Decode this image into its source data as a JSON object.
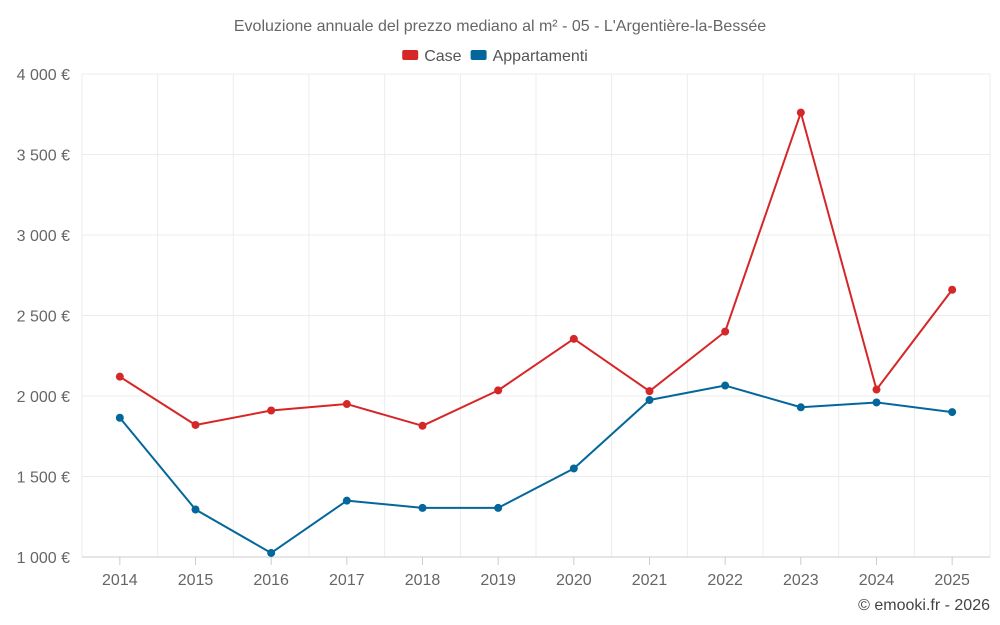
{
  "credit": "© emooki.fr - 2026",
  "chart_data": {
    "type": "line",
    "title": "Evoluzione annuale del prezzo mediano al m² - 05 - L'Argentière-la-Bessée",
    "categories": [
      "2014",
      "2015",
      "2016",
      "2017",
      "2018",
      "2019",
      "2020",
      "2021",
      "2022",
      "2023",
      "2024",
      "2025"
    ],
    "ylim": [
      1000,
      4000
    ],
    "yticks": [
      1000,
      1500,
      2000,
      2500,
      3000,
      3500,
      4000
    ],
    "ytick_labels": [
      "1 000 €",
      "1 500 €",
      "2 000 €",
      "2 500 €",
      "3 000 €",
      "3 500 €",
      "4 000 €"
    ],
    "grid": true,
    "legend_position": "top-center",
    "series": [
      {
        "name": "Case",
        "color": "#d62728",
        "values": [
          2120,
          1820,
          1910,
          1950,
          1815,
          2035,
          2355,
          2030,
          2400,
          3760,
          2040,
          2660
        ]
      },
      {
        "name": "Appartamenti",
        "color": "#04679c",
        "values": [
          1865,
          1295,
          1025,
          1350,
          1305,
          1305,
          1550,
          1975,
          2065,
          1930,
          1960,
          1900
        ]
      }
    ]
  }
}
